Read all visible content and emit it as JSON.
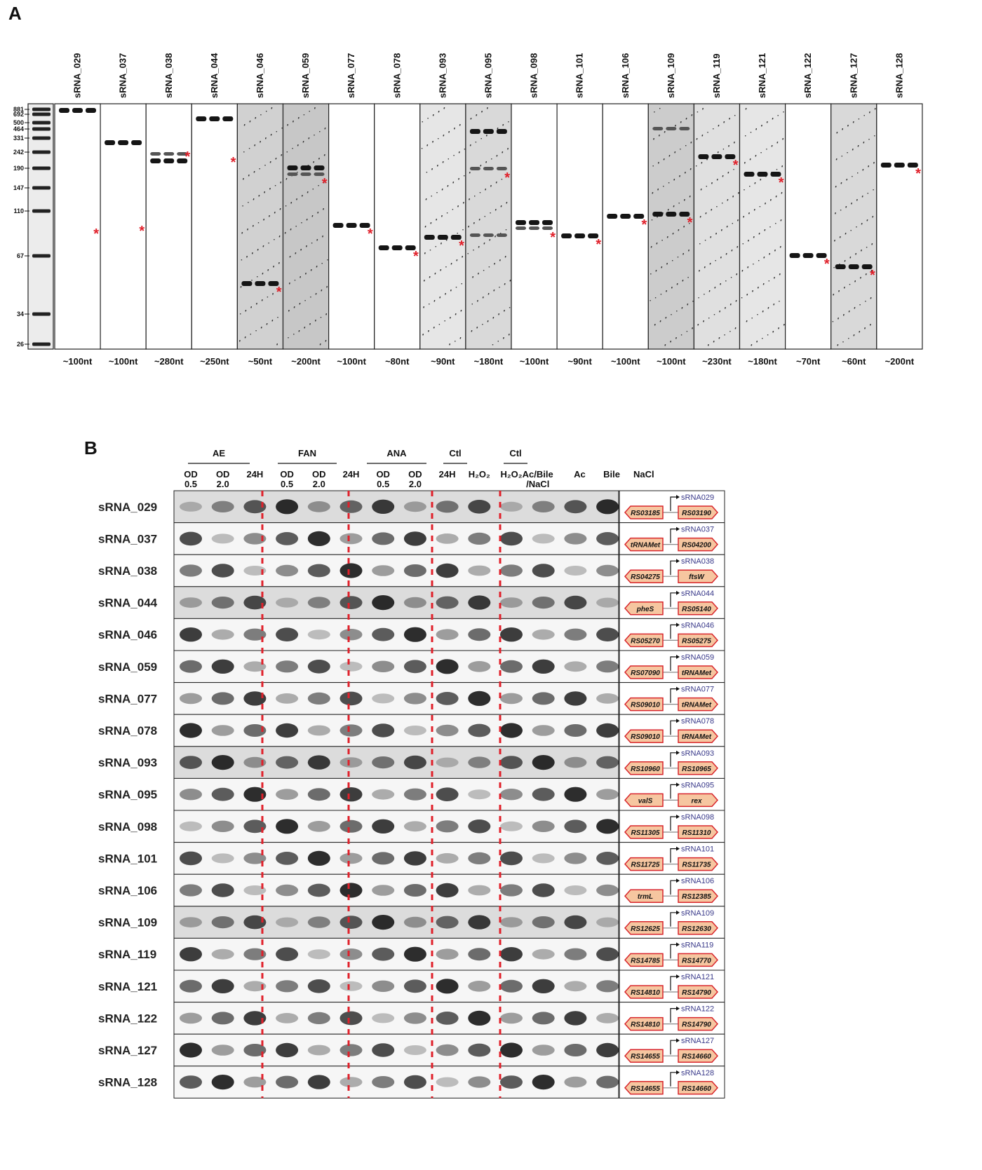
{
  "panelA": {
    "label": "A",
    "ladder": [
      "881",
      "692",
      "500",
      "464",
      "331",
      "242",
      "190",
      "147",
      "110",
      "67",
      "34",
      "26"
    ],
    "lanes": [
      {
        "name": "sRNA_029",
        "size": "~100nt"
      },
      {
        "name": "sRNA_037",
        "size": "~100nt"
      },
      {
        "name": "sRNA_038",
        "size": "~280nt"
      },
      {
        "name": "sRNA_044",
        "size": "~250nt"
      },
      {
        "name": "sRNA_046",
        "size": "~50nt"
      },
      {
        "name": "sRNA_059",
        "size": "~200nt"
      },
      {
        "name": "sRNA_077",
        "size": "~100nt"
      },
      {
        "name": "sRNA_078",
        "size": "~80nt"
      },
      {
        "name": "sRNA_093",
        "size": "~90nt"
      },
      {
        "name": "sRNA_095",
        "size": "~180nt"
      },
      {
        "name": "sRNA_098",
        "size": "~100nt"
      },
      {
        "name": "sRNA_101",
        "size": "~90nt"
      },
      {
        "name": "sRNA_106",
        "size": "~100nt"
      },
      {
        "name": "sRNA_109",
        "size": "~100nt"
      },
      {
        "name": "sRNA_119",
        "size": "~230nt"
      },
      {
        "name": "sRNA_121",
        "size": "~180nt"
      },
      {
        "name": "sRNA_122",
        "size": "~70nt"
      },
      {
        "name": "sRNA_127",
        "size": "~60nt"
      },
      {
        "name": "sRNA_128",
        "size": "~200nt"
      }
    ],
    "marker": "*",
    "marker_color": "#e0202a"
  },
  "panelB": {
    "label": "B",
    "groups": [
      "AE",
      "FAN",
      "ANA",
      "Ctl",
      "Ctl"
    ],
    "lane_labels": [
      {
        "top": "OD",
        "bottom": "0.5"
      },
      {
        "top": "OD",
        "bottom": "2.0"
      },
      {
        "top": "24H",
        "bottom": ""
      },
      {
        "top": "OD",
        "bottom": "0.5"
      },
      {
        "top": "OD",
        "bottom": "2.0"
      },
      {
        "top": "24H",
        "bottom": ""
      },
      {
        "top": "OD",
        "bottom": "0.5"
      },
      {
        "top": "OD",
        "bottom": "2.0"
      },
      {
        "top": "24H",
        "bottom": ""
      },
      {
        "top": "H₂O₂",
        "bottom": ""
      },
      {
        "top": "H₂O₂",
        "bottom": ""
      },
      {
        "top": "Ac/Bile",
        "bottom": "/NaCl"
      },
      {
        "top": "Ac",
        "bottom": ""
      },
      {
        "top": "Bile",
        "bottom": ""
      },
      {
        "top": "NaCl",
        "bottom": ""
      }
    ],
    "rows": [
      {
        "name": "sRNA_029",
        "srna": "sRNA029",
        "left": "RS03185",
        "right": "RS03190"
      },
      {
        "name": "sRNA_037",
        "srna": "sRNA037",
        "left": "tRNAMet",
        "right": "RS04200"
      },
      {
        "name": "sRNA_038",
        "srna": "sRNA038",
        "left": "RS04275",
        "right": "ftsW"
      },
      {
        "name": "sRNA_044",
        "srna": "sRNA044",
        "left": "pheS",
        "right": "RS05140"
      },
      {
        "name": "sRNA_046",
        "srna": "sRNA046",
        "left": "RS05270",
        "right": "RS05275"
      },
      {
        "name": "sRNA_059",
        "srna": "sRNA059",
        "left": "RS07090",
        "right": "tRNAMet"
      },
      {
        "name": "sRNA_077",
        "srna": "sRNA077",
        "left": "RS09010",
        "right": "tRNAMet"
      },
      {
        "name": "sRNA_078",
        "srna": "sRNA078",
        "left": "RS09010",
        "right": "tRNAMet"
      },
      {
        "name": "sRNA_093",
        "srna": "sRNA093",
        "left": "RS10960",
        "right": "RS10965"
      },
      {
        "name": "sRNA_095",
        "srna": "sRNA095",
        "left": "valS",
        "right": "rex"
      },
      {
        "name": "sRNA_098",
        "srna": "sRNA098",
        "left": "RS11305",
        "right": "RS11310"
      },
      {
        "name": "sRNA_101",
        "srna": "sRNA101",
        "left": "RS11725",
        "right": "RS11735"
      },
      {
        "name": "sRNA_106",
        "srna": "sRNA106",
        "left": "trmL",
        "right": "RS12385"
      },
      {
        "name": "sRNA_109",
        "srna": "sRNA109",
        "left": "RS12625",
        "right": "RS12630"
      },
      {
        "name": "sRNA_119",
        "srna": "sRNA119",
        "left": "RS14785",
        "right": "RS14770"
      },
      {
        "name": "sRNA_121",
        "srna": "sRNA121",
        "left": "RS14810",
        "right": "RS14790"
      },
      {
        "name": "sRNA_122",
        "srna": "sRNA122",
        "left": "RS14810",
        "right": "RS14790"
      },
      {
        "name": "sRNA_127",
        "srna": "sRNA127",
        "left": "RS14655",
        "right": "RS14660"
      },
      {
        "name": "sRNA_128",
        "srna": "sRNA128",
        "left": "RS14655",
        "right": "RS14660"
      }
    ],
    "divider_color": "#e0202a",
    "gene_fill": "#f6c6a0",
    "gene_stroke": "#d8262c"
  }
}
